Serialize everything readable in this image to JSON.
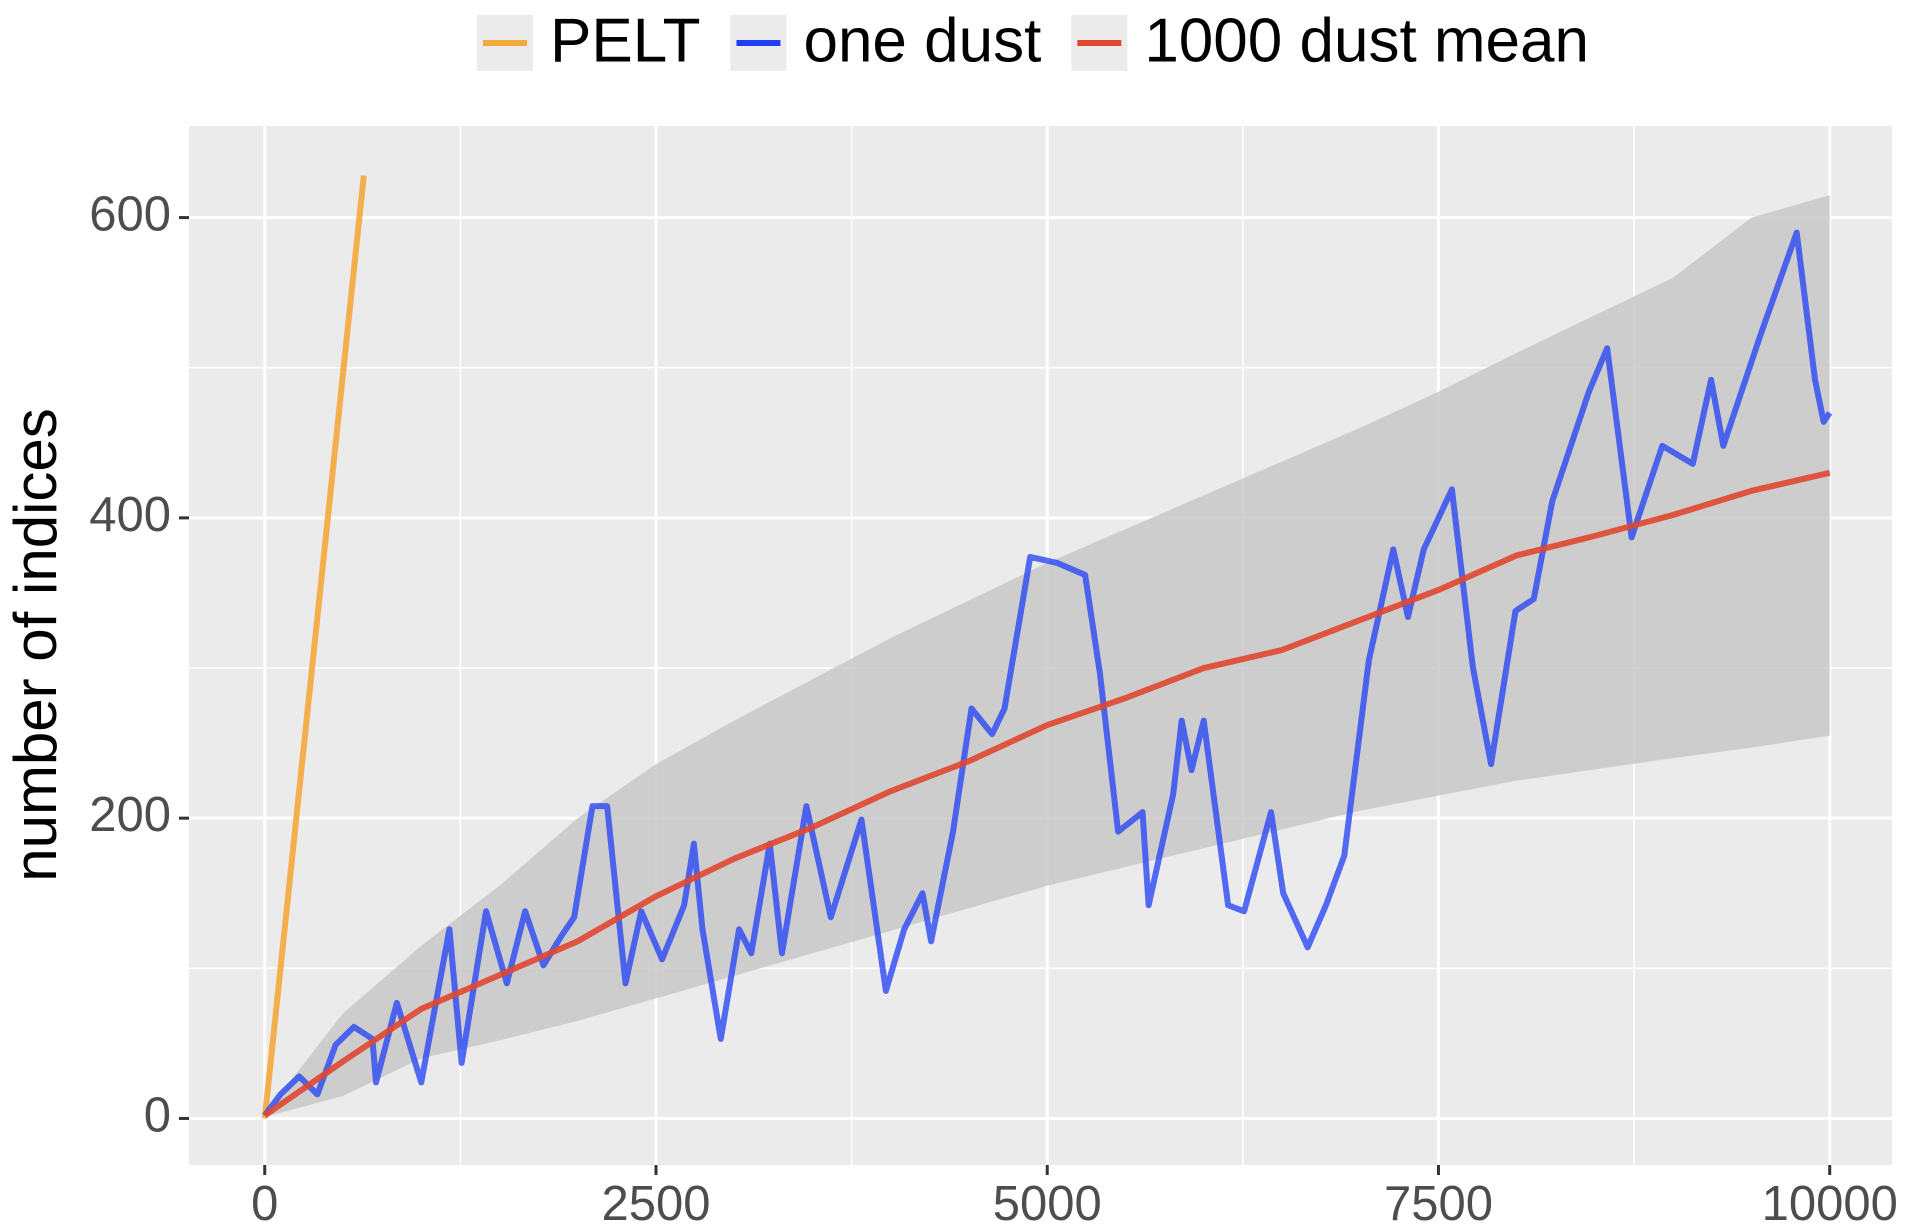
{
  "chart_data": {
    "type": "line",
    "y_label": "number of indices",
    "xlim": [
      -484,
      10398
    ],
    "ylim": [
      -31,
      661
    ],
    "xticks": [
      0,
      2500,
      5000,
      7500,
      10000
    ],
    "yticks": [
      0,
      200,
      400,
      600
    ],
    "x_minor_grid": [
      1250,
      3750,
      6250,
      8750
    ],
    "y_minor_grid": [
      100,
      300,
      500
    ],
    "grid": true,
    "legend_position": "top",
    "band": {
      "color": "#c8c8c8",
      "x": [
        0,
        500,
        1000,
        1500,
        2000,
        2500,
        3000,
        4000,
        5000,
        6000,
        7000,
        7500,
        8000,
        9000,
        9500,
        10000
      ],
      "lower": [
        1,
        15,
        40,
        52,
        65,
        80,
        95,
        125,
        155,
        180,
        205,
        215,
        225,
        240,
        247,
        255
      ],
      "upper": [
        3,
        70,
        115,
        155,
        200,
        236,
        265,
        320,
        370,
        415,
        460,
        484,
        510,
        560,
        600,
        615
      ]
    },
    "series": [
      {
        "name": "PELT",
        "color": "#f4a93b",
        "x": [
          0,
          633
        ],
        "values": [
          0,
          628
        ]
      },
      {
        "name": "one dust",
        "color": "#1f3ef5",
        "x": [
          0,
          100,
          220,
          336,
          453,
          570,
          688,
          711,
          844,
          1000,
          1180,
          1258,
          1414,
          1547,
          1664,
          1781,
          1898,
          1977,
          2094,
          2188,
          2305,
          2406,
          2539,
          2680,
          2742,
          2797,
          2914,
          3031,
          3109,
          3227,
          3305,
          3461,
          3617,
          3813,
          3969,
          4086,
          4203,
          4258,
          4398,
          4516,
          4648,
          4727,
          4891,
          5063,
          5242,
          5336,
          5453,
          5609,
          5648,
          5805,
          5859,
          5922,
          6000,
          6156,
          6258,
          6430,
          6508,
          6664,
          6781,
          6898,
          7055,
          7211,
          7305,
          7406,
          7586,
          7719,
          7836,
          7992,
          8109,
          8227,
          8461,
          8578,
          8734,
          8930,
          9125,
          9242,
          9320,
          9555,
          9789,
          9906,
          9961,
          10000
        ],
        "values": [
          2,
          16,
          28,
          16,
          49,
          61,
          53,
          24,
          77,
          24,
          126,
          37,
          138,
          90,
          138,
          102,
          122,
          134,
          208,
          208,
          90,
          138,
          106,
          142,
          183,
          126,
          53,
          126,
          110,
          183,
          110,
          208,
          134,
          199,
          85,
          126,
          150,
          118,
          191,
          273,
          256,
          273,
          374,
          370,
          362,
          297,
          191,
          204,
          142,
          216,
          265,
          232,
          265,
          142,
          138,
          204,
          150,
          114,
          142,
          175,
          305,
          379,
          334,
          379,
          419,
          301,
          236,
          338,
          346,
          411,
          484,
          513,
          387,
          448,
          436,
          492,
          448,
          521,
          590,
          492,
          464,
          470
        ]
      },
      {
        "name": "1000 dust mean",
        "color": "#e0472f",
        "x": [
          0,
          500,
          1000,
          2000,
          2500,
          3000,
          3500,
          4000,
          4500,
          5000,
          5500,
          6000,
          6500,
          7000,
          7500,
          8000,
          8500,
          9000,
          9500,
          10000
        ],
        "values": [
          2,
          38,
          73,
          118,
          148,
          173,
          194,
          218,
          238,
          262,
          280,
          300,
          312,
          332,
          352,
          375,
          388,
          402,
          418,
          430
        ]
      }
    ]
  }
}
